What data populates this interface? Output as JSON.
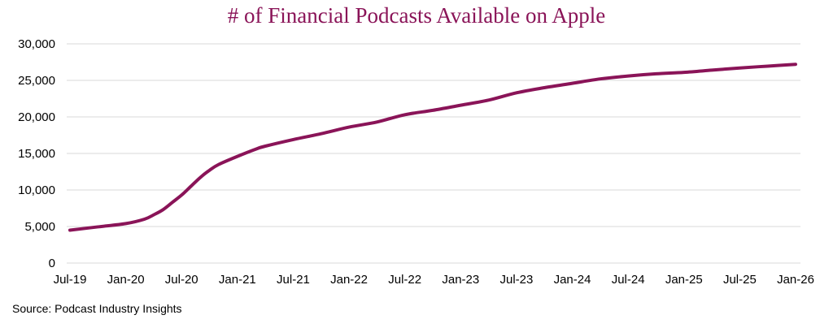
{
  "chart_data": {
    "type": "line",
    "title": "# of Financial Podcasts Available on Apple",
    "source": "Source: Podcast Industry Insights",
    "xlabel": "",
    "ylabel": "",
    "ylim": [
      0,
      30000
    ],
    "yticks": [
      0,
      5000,
      10000,
      15000,
      20000,
      25000,
      30000
    ],
    "ytick_labels": [
      "0",
      "5,000",
      "10,000",
      "15,000",
      "20,000",
      "25,000",
      "30,000"
    ],
    "xtick_labels": [
      "Jul-19",
      "Jan-20",
      "Jul-20",
      "Jan-21",
      "Jul-21",
      "Jan-22",
      "Jul-22",
      "Jan-23",
      "Jul-23",
      "Jan-24",
      "Jul-24",
      "Jan-25",
      "Jul-25",
      "Jan-26"
    ],
    "grid": true,
    "line_color": "#8a1458",
    "series": [
      {
        "name": "Financial Podcasts",
        "x_months_from_jul19": [
          0,
          3,
          6,
          8,
          9,
          10,
          11,
          12,
          13,
          14,
          15,
          16,
          18,
          20,
          21,
          24,
          27,
          30,
          33,
          36,
          39,
          42,
          45,
          48,
          51,
          54,
          57,
          60,
          63,
          66,
          69,
          72,
          75,
          78
        ],
        "values": [
          4500,
          4950,
          5400,
          6000,
          6600,
          7300,
          8300,
          9300,
          10500,
          11700,
          12700,
          13500,
          14600,
          15600,
          16000,
          16900,
          17700,
          18600,
          19300,
          20300,
          20900,
          21600,
          22300,
          23300,
          24000,
          24600,
          25200,
          25600,
          25900,
          26100,
          26400,
          26700,
          26950,
          27200
        ]
      }
    ]
  }
}
